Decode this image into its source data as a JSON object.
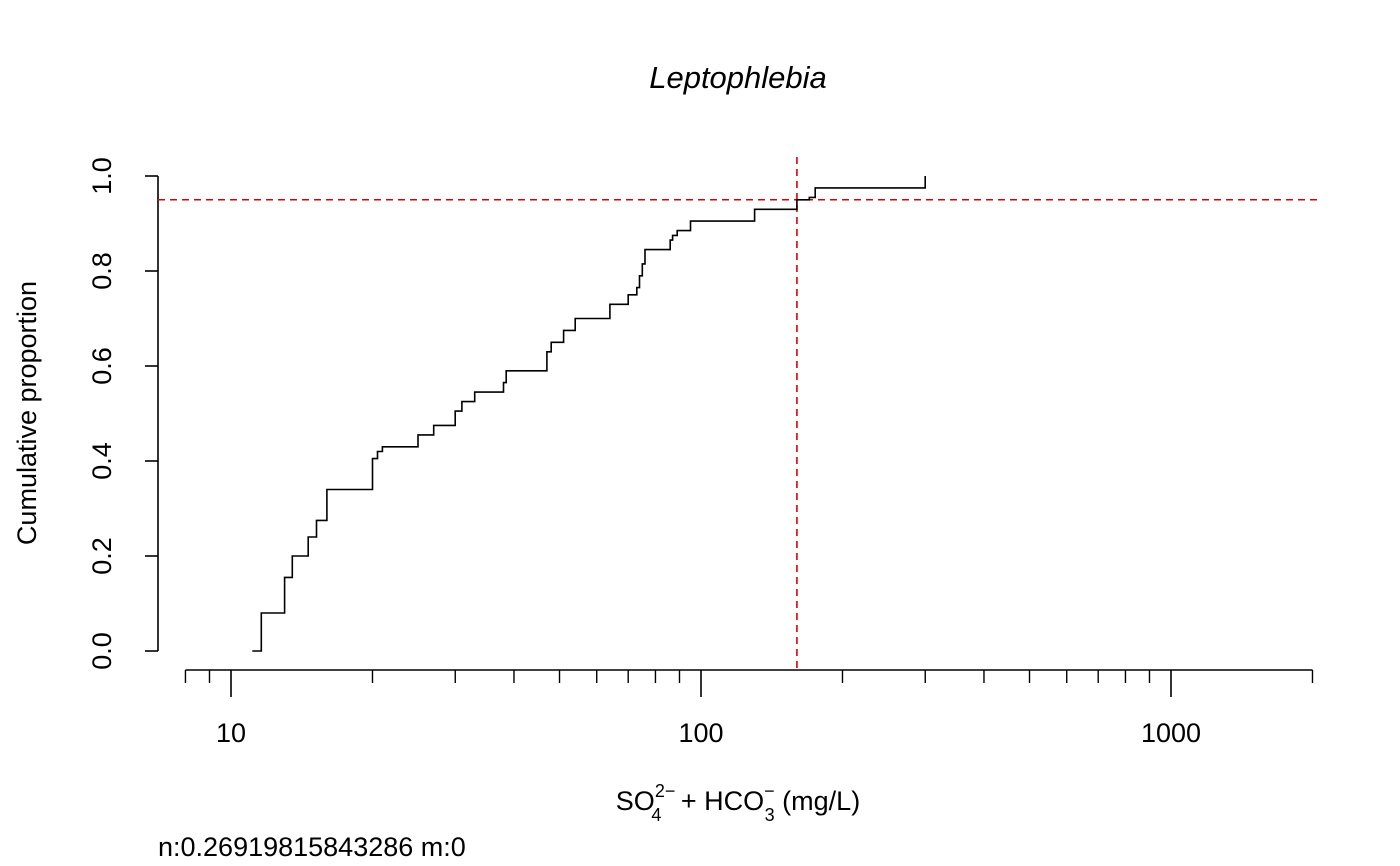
{
  "chart_data": {
    "type": "step",
    "title": "Leptophlebia",
    "xlabel": {
      "base1": "SO",
      "sub1": "4",
      "sup1": "2−",
      "mid": " + HCO",
      "sub2": "3",
      "sup2": "−",
      "tail": " (mg/L)"
    },
    "ylabel": "Cumulative proportion",
    "footer": "n:0.26919815843286 m:0",
    "x_scale": "log",
    "xlim": [
      7.5,
      2000
    ],
    "ylim": [
      -0.04,
      1.04
    ],
    "x_ticks_major": [
      10,
      100,
      1000
    ],
    "x_tick_labels": [
      "10",
      "100",
      "1000"
    ],
    "x_ticks_minor": [
      8,
      9,
      20,
      30,
      40,
      50,
      60,
      70,
      80,
      90,
      200,
      300,
      400,
      500,
      600,
      700,
      800,
      900,
      2000
    ],
    "y_ticks": [
      0.0,
      0.2,
      0.4,
      0.6,
      0.8,
      1.0
    ],
    "y_tick_labels": [
      "0.0",
      "0.2",
      "0.4",
      "0.6",
      "0.8",
      "1.0"
    ],
    "series": [
      {
        "x": [
          11.1,
          11.6,
          13.0,
          13.5,
          14.6,
          15.2,
          16.0,
          20.0,
          20.5,
          21.0,
          25.0,
          27.0,
          30.0,
          31.0,
          33.0,
          38.0,
          38.5,
          47.0,
          48.0,
          51.0,
          54.0,
          64.0,
          70.0,
          73.0,
          74.0,
          75.0,
          76.0,
          86.0,
          87.0,
          89.0,
          95.0,
          130.0,
          160.0,
          170.0,
          175.0,
          300.0
        ],
        "y": [
          0.0,
          0.08,
          0.155,
          0.2,
          0.24,
          0.275,
          0.34,
          0.405,
          0.42,
          0.43,
          0.455,
          0.475,
          0.505,
          0.525,
          0.545,
          0.565,
          0.59,
          0.63,
          0.65,
          0.675,
          0.7,
          0.73,
          0.75,
          0.765,
          0.79,
          0.815,
          0.845,
          0.865,
          0.875,
          0.885,
          0.905,
          0.93,
          0.95,
          0.955,
          0.975,
          1.0
        ]
      }
    ],
    "reference_lines": {
      "color": "#dd0000",
      "horizontal_y": 0.95,
      "vertical_x": 160
    },
    "colors": {
      "series": "#000000",
      "axis": "#000000"
    }
  }
}
